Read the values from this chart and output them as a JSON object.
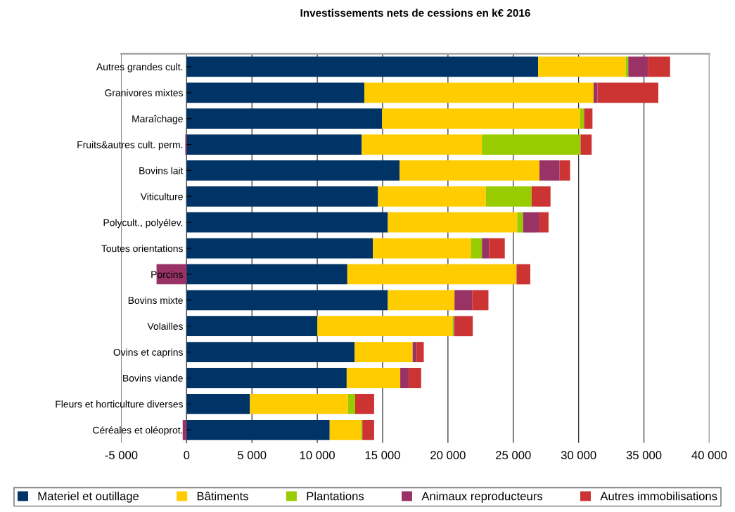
{
  "chart_data": {
    "type": "bar",
    "orientation": "horizontal",
    "stacked": true,
    "title": "Investissements nets de cessions en k€ 2016",
    "categories": [
      "Autres grandes cult.",
      "Granivores mixtes",
      "Maraîchage",
      "Fruits&autres cult. perm.",
      "Bovins lait",
      "Viticulture",
      "Polycult., polyélev.",
      "Toutes orientations",
      "Porcins",
      "Bovins mixte",
      "Volailles",
      "Ovins et caprins",
      "Bovins viande",
      "Fleurs et horticulture diverses",
      "Céréales et oléoprot."
    ],
    "series": [
      {
        "name": "Materiel et outillage",
        "color": "#003366",
        "values": [
          26900,
          13600,
          14950,
          13400,
          16300,
          14650,
          15400,
          14250,
          12300,
          15400,
          10000,
          12850,
          12250,
          4850,
          10950
        ]
      },
      {
        "name": "Bâtiments",
        "color": "#ffcc00",
        "values": [
          6700,
          17550,
          15150,
          9200,
          10700,
          8250,
          9900,
          7500,
          12950,
          5100,
          10350,
          4450,
          4100,
          7500,
          2400
        ]
      },
      {
        "name": "Plantations",
        "color": "#99cc00",
        "values": [
          200,
          0,
          320,
          7550,
          0,
          3500,
          450,
          850,
          0,
          0,
          100,
          0,
          0,
          550,
          100
        ]
      },
      {
        "name": "Animaux reproducteurs",
        "color": "#993366",
        "values": [
          1500,
          300,
          0,
          -100,
          1550,
          0,
          1250,
          550,
          -2300,
          1350,
          50,
          300,
          650,
          0,
          -300
        ]
      },
      {
        "name": "Autres immobilisations",
        "color": "#cc3333",
        "values": [
          1700,
          4650,
          640,
          850,
          800,
          1450,
          700,
          1200,
          1050,
          1250,
          1400,
          550,
          950,
          1450,
          900
        ]
      }
    ],
    "xlim": [
      -5000,
      40000
    ],
    "xticks": [
      {
        "value": -5000,
        "label": "-5 000"
      },
      0,
      {
        "value": 5000,
        "label": "5 000"
      },
      {
        "value": 10000,
        "label": "10 000"
      },
      {
        "value": 15000,
        "label": "15 000"
      },
      {
        "value": 20000,
        "label": "20 000"
      },
      {
        "value": 25000,
        "label": "25 000"
      },
      {
        "value": 30000,
        "label": "30 000"
      },
      {
        "value": 35000,
        "label": "35 000"
      },
      {
        "value": 40000,
        "label": "40 000"
      }
    ],
    "grid": "x",
    "legend": "bottom"
  }
}
